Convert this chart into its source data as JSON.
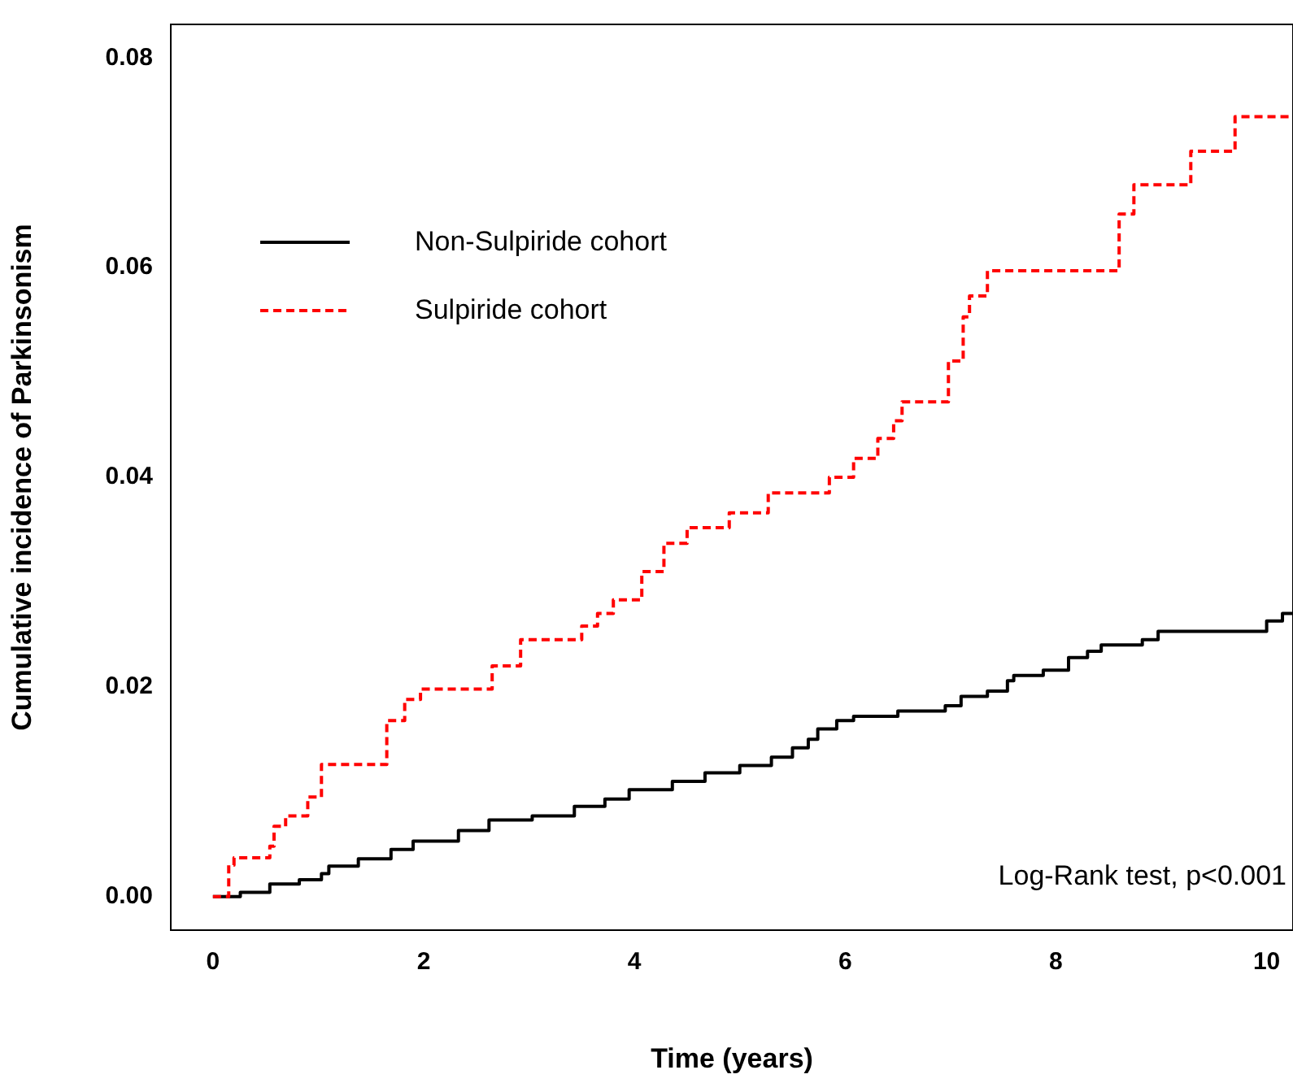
{
  "chart_data": {
    "type": "step",
    "xlabel": "Time (years)",
    "ylabel": "Cumulative incidence of Parkinsonism",
    "xlim": [
      -0.4,
      10.25
    ],
    "ylim": [
      -0.0032,
      0.0832
    ],
    "xticks": [
      0,
      2,
      4,
      6,
      8,
      10
    ],
    "yticks": [
      {
        "value": 0,
        "label": "0.00"
      },
      {
        "value": 0.02,
        "label": "0.02"
      },
      {
        "value": 0.04,
        "label": "0.04"
      },
      {
        "value": 0.06,
        "label": "0.06"
      },
      {
        "value": 0.08,
        "label": "0.08"
      }
    ],
    "grid": false,
    "legend": "top left",
    "marker": "none",
    "annotations": [
      "Log-Rank test, p<0.001"
    ],
    "series": [
      {
        "name": "Non-Sulpiride cohort",
        "color": "#000000",
        "line_style": "solid",
        "x": [
          0,
          0.26,
          0.54,
          0.82,
          1.03,
          1.1,
          1.38,
          1.69,
          1.9,
          2.33,
          2.62,
          3.03,
          3.43,
          3.72,
          3.95,
          4.36,
          4.67,
          5.0,
          5.3,
          5.5,
          5.65,
          5.74,
          5.92,
          6.08,
          6.5,
          6.95,
          7.1,
          7.35,
          7.54,
          7.6,
          7.88,
          8.12,
          8.3,
          8.43,
          8.82,
          8.97,
          10.0,
          10.15,
          10.25
        ],
        "values": [
          0,
          0.0004,
          0.0012,
          0.0016,
          0.0022,
          0.0029,
          0.0036,
          0.0045,
          0.0053,
          0.0063,
          0.0073,
          0.0077,
          0.0086,
          0.0093,
          0.0102,
          0.011,
          0.0118,
          0.0125,
          0.0133,
          0.0142,
          0.015,
          0.016,
          0.0168,
          0.0172,
          0.0177,
          0.0182,
          0.0191,
          0.0196,
          0.0206,
          0.0211,
          0.0216,
          0.0228,
          0.0234,
          0.024,
          0.0245,
          0.0253,
          0.0263,
          0.027,
          0.027
        ]
      },
      {
        "name": "Sulpiride cohort",
        "color": "#ff0000",
        "line_style": "dashed",
        "x": [
          0,
          0.15,
          0.2,
          0.54,
          0.58,
          0.69,
          0.9,
          1.03,
          1.65,
          1.82,
          1.97,
          2.65,
          2.92,
          3.5,
          3.65,
          3.8,
          4.07,
          4.28,
          4.5,
          4.9,
          5.27,
          5.85,
          6.08,
          6.31,
          6.46,
          6.54,
          6.98,
          7.12,
          7.18,
          7.35,
          8.6,
          8.74,
          9.28,
          9.7,
          10.25
        ],
        "values": [
          0,
          0.003,
          0.0037,
          0.0048,
          0.0067,
          0.0077,
          0.0095,
          0.0126,
          0.0168,
          0.0188,
          0.0198,
          0.022,
          0.0245,
          0.0258,
          0.027,
          0.0283,
          0.031,
          0.0337,
          0.0352,
          0.0366,
          0.0385,
          0.04,
          0.0418,
          0.0437,
          0.0454,
          0.0472,
          0.0511,
          0.0553,
          0.0573,
          0.0597,
          0.0651,
          0.0679,
          0.0711,
          0.0744,
          0.0744
        ]
      }
    ]
  }
}
